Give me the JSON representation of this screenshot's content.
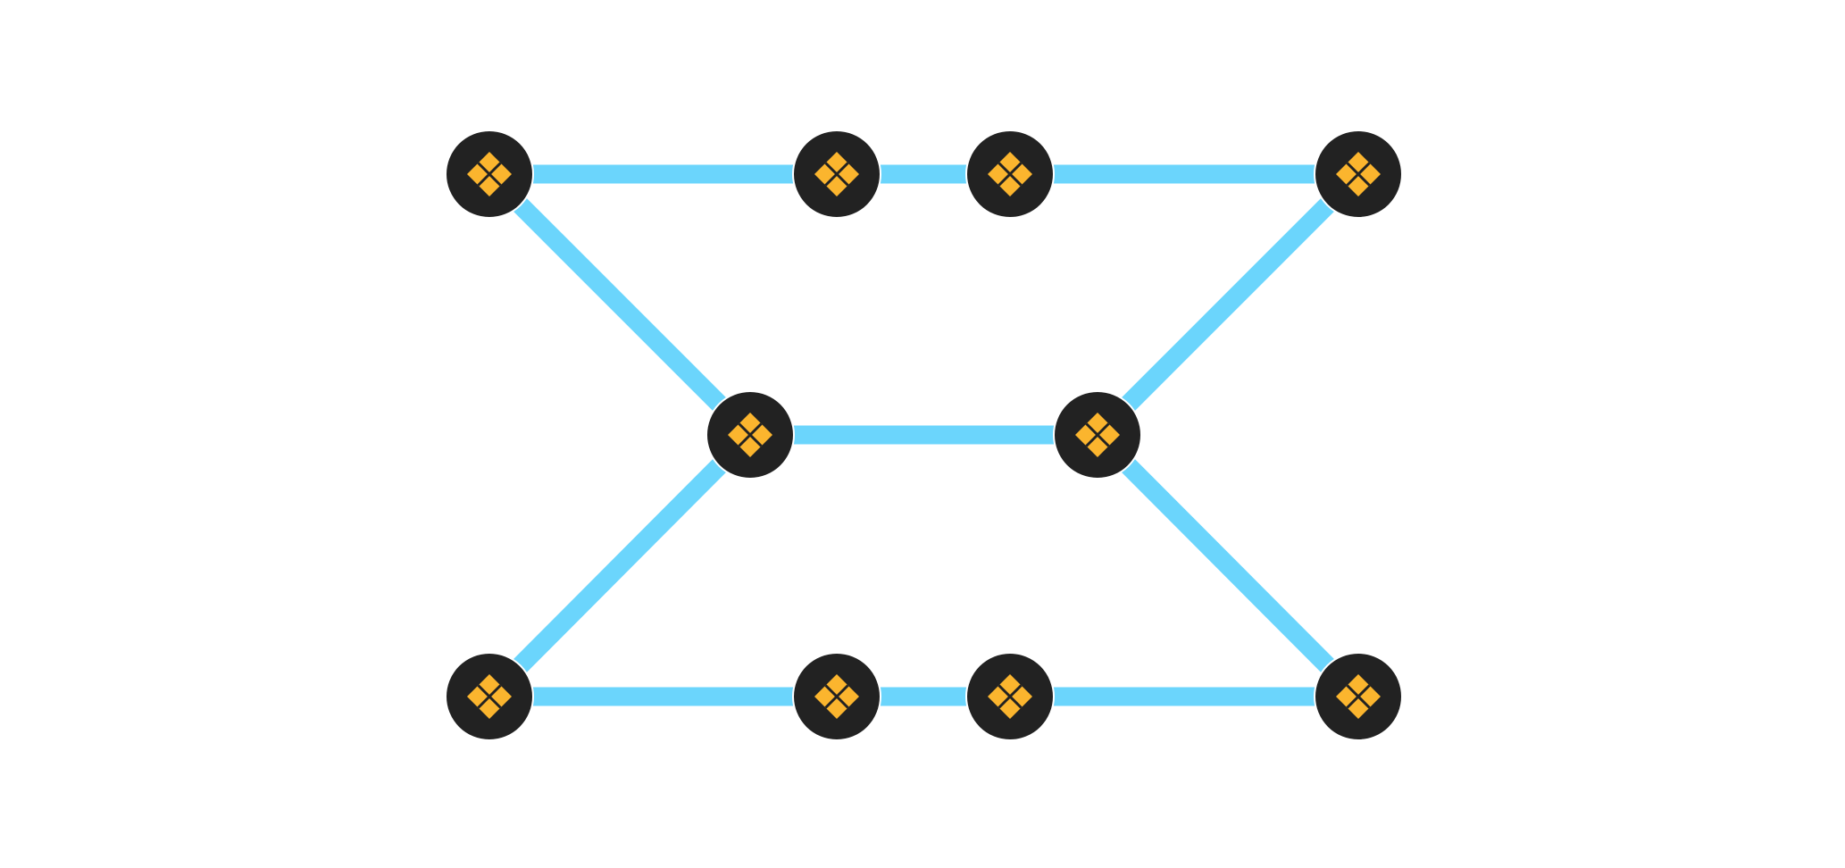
{
  "colors": {
    "background": "#ffffff",
    "edge": "#6bd5fc",
    "node_fill": "#222222",
    "node_marker": "#fbb52e"
  },
  "nodes": [
    {
      "id": "top-1",
      "icon": "diamond-marker-icon"
    },
    {
      "id": "top-2",
      "icon": "diamond-marker-icon"
    },
    {
      "id": "top-3",
      "icon": "diamond-marker-icon"
    },
    {
      "id": "top-4",
      "icon": "diamond-marker-icon"
    },
    {
      "id": "mid-left",
      "icon": "diamond-marker-icon"
    },
    {
      "id": "mid-right",
      "icon": "diamond-marker-icon"
    },
    {
      "id": "bottom-1",
      "icon": "diamond-marker-icon"
    },
    {
      "id": "bottom-2",
      "icon": "diamond-marker-icon"
    },
    {
      "id": "bottom-3",
      "icon": "diamond-marker-icon"
    },
    {
      "id": "bottom-4",
      "icon": "diamond-marker-icon"
    }
  ],
  "edges": [
    {
      "from": "top-1",
      "to": "top-2"
    },
    {
      "from": "top-2",
      "to": "top-3"
    },
    {
      "from": "top-3",
      "to": "top-4"
    },
    {
      "from": "top-1",
      "to": "mid-left"
    },
    {
      "from": "top-4",
      "to": "mid-right"
    },
    {
      "from": "mid-left",
      "to": "mid-right"
    },
    {
      "from": "mid-left",
      "to": "bottom-1"
    },
    {
      "from": "mid-right",
      "to": "bottom-4"
    },
    {
      "from": "bottom-1",
      "to": "bottom-2"
    },
    {
      "from": "bottom-2",
      "to": "bottom-3"
    },
    {
      "from": "bottom-3",
      "to": "bottom-4"
    }
  ]
}
